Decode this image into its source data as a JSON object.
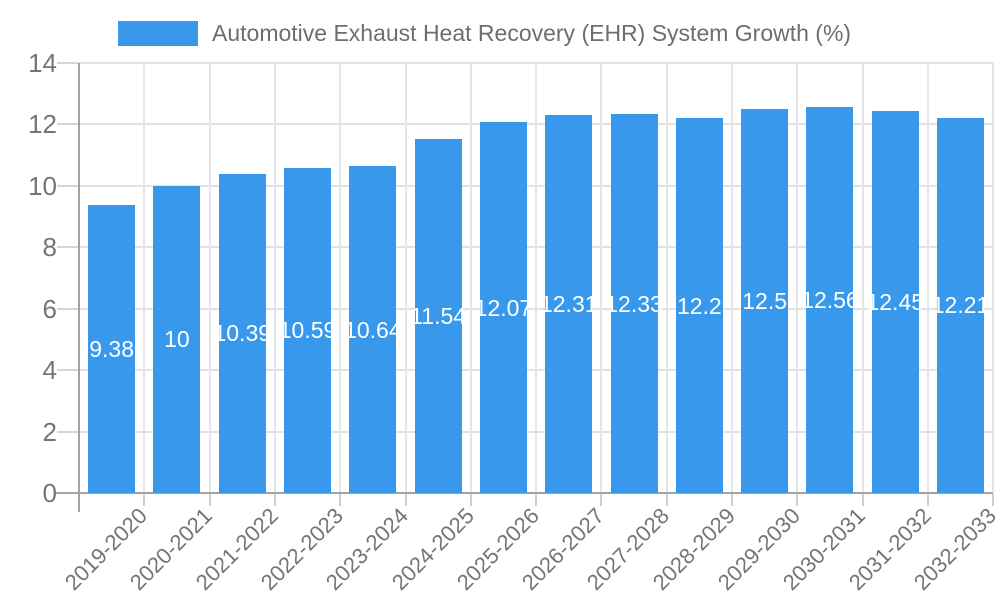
{
  "legend": {
    "label": "Automotive Exhaust Heat Recovery (EHR) System Growth (%)",
    "swatch_color": "#3899EC"
  },
  "chart_data": {
    "type": "bar",
    "title": "Automotive Exhaust Heat Recovery (EHR) System Growth (%)",
    "xlabel": "",
    "ylabel": "",
    "categories": [
      "2019-2020",
      "2020-2021",
      "2021-2022",
      "2022-2023",
      "2023-2024",
      "2024-2025",
      "2025-2026",
      "2026-2027",
      "2027-2028",
      "2028-2029",
      "2029-2030",
      "2030-2031",
      "2031-2032",
      "2032-2033"
    ],
    "values": [
      9.38,
      10,
      10.39,
      10.59,
      10.64,
      11.54,
      12.07,
      12.31,
      12.33,
      12.2,
      12.5,
      12.56,
      12.45,
      12.21
    ],
    "value_labels": [
      "9.38",
      "10",
      "10.39",
      "10.59",
      "10.64",
      "11.54",
      "12.07",
      "12.31",
      "12.33",
      "12.2",
      "12.5",
      "12.56",
      "12.45",
      "12.21"
    ],
    "ylim": [
      0,
      14
    ],
    "yticks": [
      0,
      2,
      4,
      6,
      8,
      10,
      12,
      14
    ],
    "grid": true,
    "legend_position": "top",
    "bar_color": "#3899EC",
    "value_label_color": "#ffffff",
    "axis_text_color": "#757575"
  }
}
